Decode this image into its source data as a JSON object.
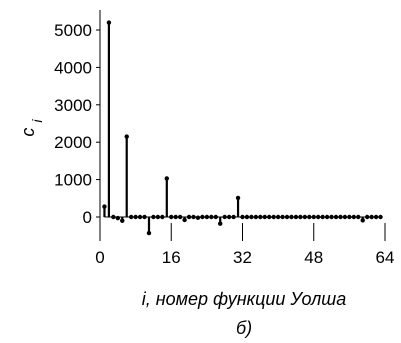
{
  "chart_data": {
    "type": "stem",
    "title": "",
    "xlabel": "i, номер функции Уолша",
    "ylabel": "c",
    "ylabel_subscript": "i",
    "caption": "б)",
    "xlim": [
      0,
      64
    ],
    "ylim": [
      -500,
      5500
    ],
    "x_ticks": [
      0,
      16,
      32,
      48,
      64
    ],
    "x_tick_labels": [
      "0",
      "16",
      "32",
      "48",
      "64"
    ],
    "y_ticks": [
      0,
      1000,
      2000,
      3000,
      4000,
      5000
    ],
    "y_tick_labels": [
      "0",
      "1000",
      "2000",
      "3000",
      "4000",
      "5000"
    ],
    "grid": "vertical",
    "series": [
      {
        "x": [
          1,
          2,
          3,
          4,
          5,
          6,
          7,
          8,
          9,
          10,
          11,
          12,
          13,
          14,
          15,
          16,
          17,
          18,
          19,
          20,
          21,
          22,
          23,
          24,
          25,
          26,
          27,
          28,
          29,
          30,
          31,
          32,
          33,
          34,
          35,
          36,
          37,
          38,
          39,
          40,
          41,
          42,
          43,
          44,
          45,
          46,
          47,
          48,
          49,
          50,
          51,
          52,
          53,
          54,
          55,
          56,
          57,
          58,
          59,
          60,
          61,
          62,
          63
        ],
        "y": [
          280,
          5200,
          0,
          -30,
          -100,
          2150,
          0,
          0,
          0,
          0,
          -430,
          0,
          0,
          0,
          1030,
          0,
          0,
          0,
          -80,
          0,
          0,
          -20,
          0,
          0,
          0,
          0,
          -180,
          0,
          0,
          0,
          510,
          0,
          0,
          0,
          0,
          0,
          0,
          0,
          0,
          0,
          0,
          0,
          0,
          0,
          0,
          0,
          0,
          0,
          0,
          0,
          0,
          0,
          0,
          0,
          0,
          0,
          0,
          0,
          -90,
          0,
          0,
          0,
          0
        ]
      }
    ]
  }
}
